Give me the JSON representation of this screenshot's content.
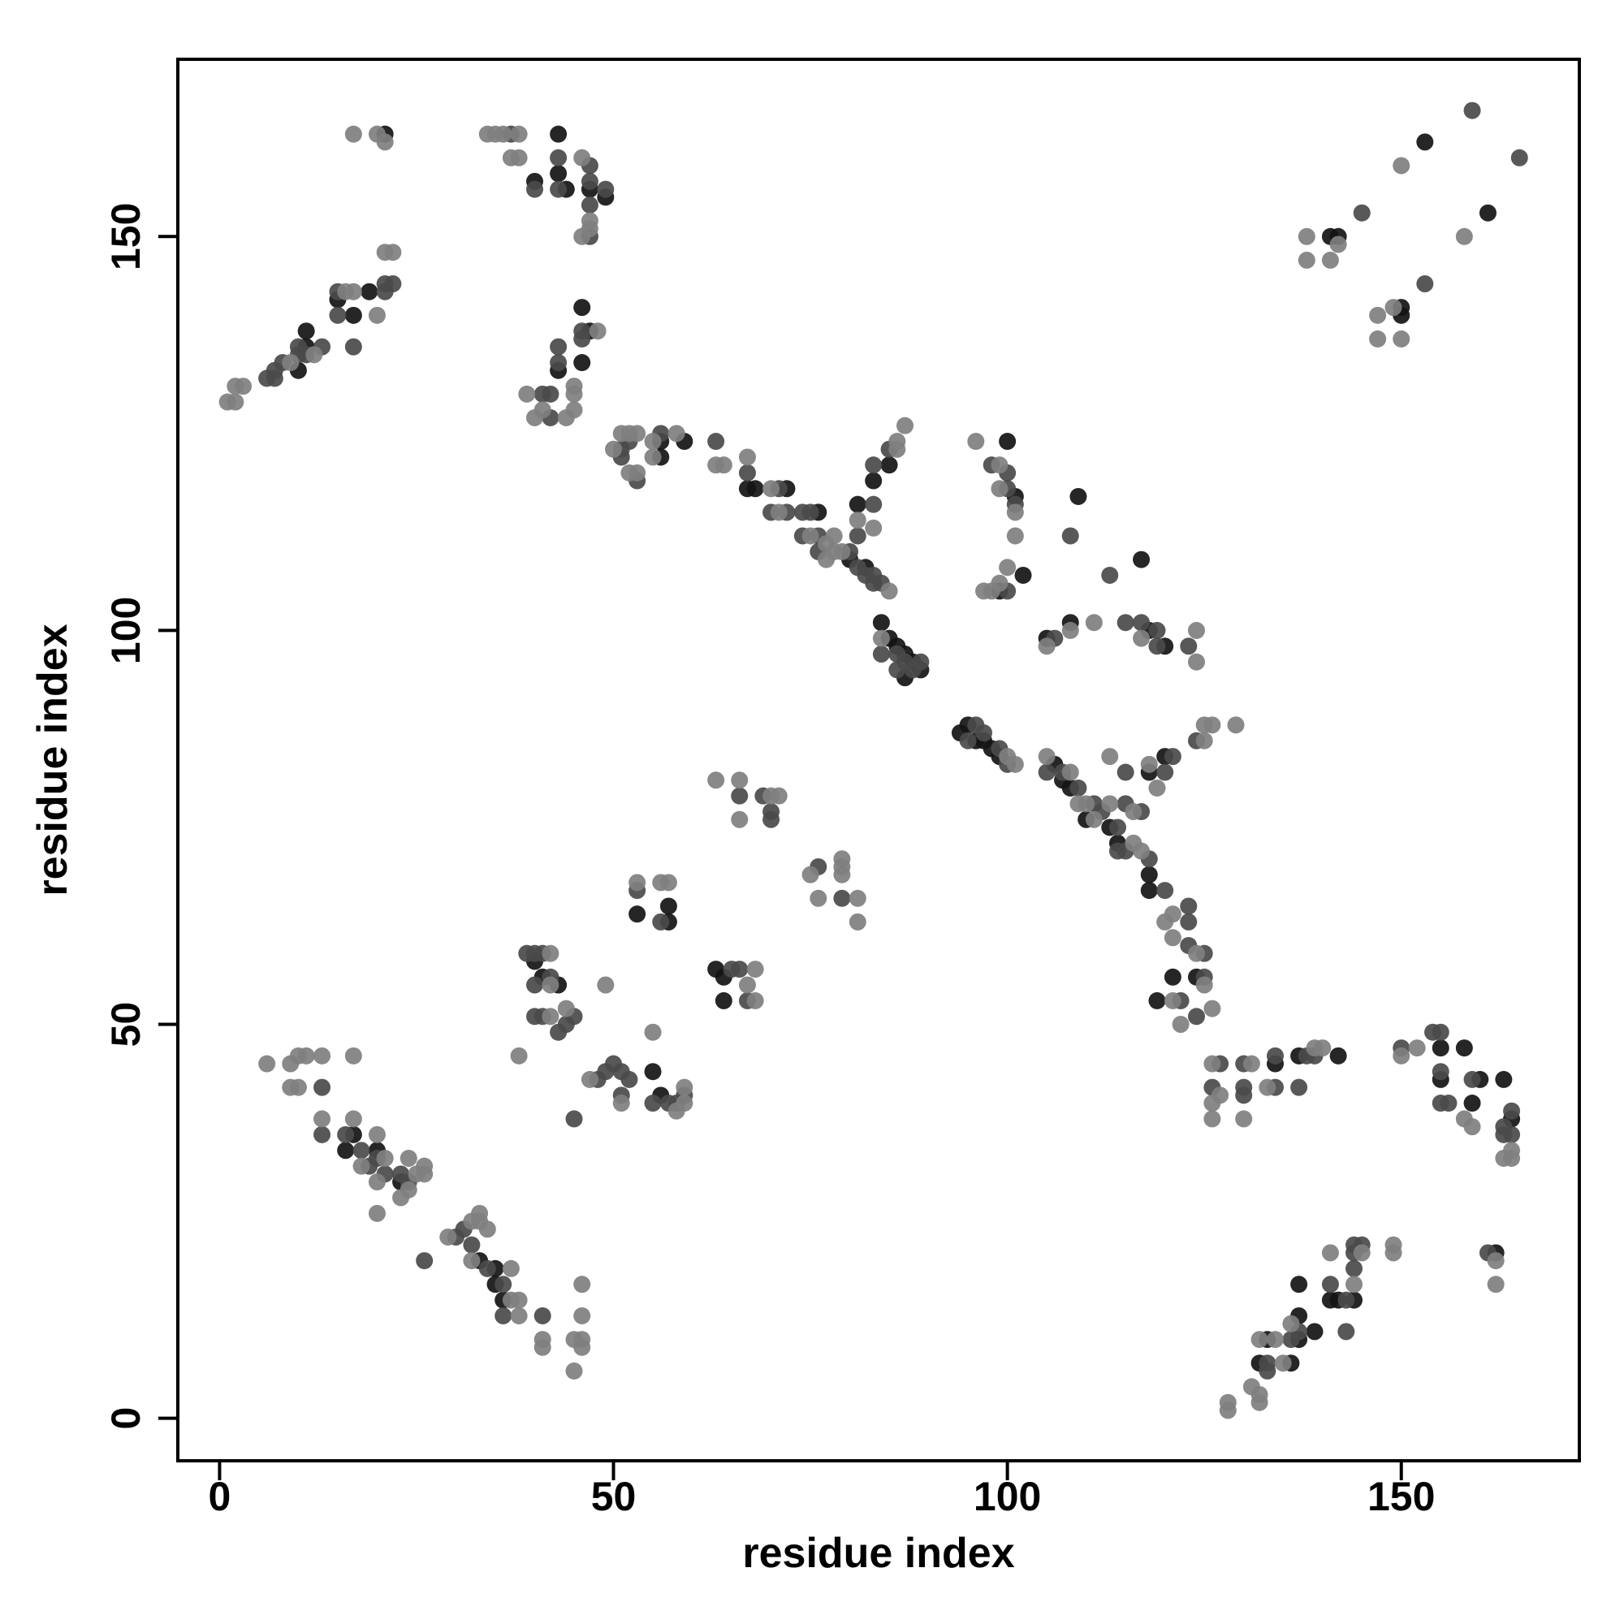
{
  "chart_data": {
    "type": "scatter",
    "xlabel": "residue index",
    "ylabel": "residue index",
    "xlim": [
      -5.3,
      172.6
    ],
    "ylim": [
      -5.4,
      172.5
    ],
    "xticks": [
      0,
      50,
      100,
      150
    ],
    "yticks": [
      0,
      50,
      100,
      150
    ],
    "grid": false,
    "series": [
      {
        "color": "#141414",
        "x": [
          10,
          11,
          11,
          15,
          17,
          19,
          21,
          40,
          43,
          43,
          44,
          47,
          49,
          46,
          47,
          46,
          43,
          56,
          56,
          59,
          67,
          68,
          72,
          76,
          81,
          83,
          85,
          80,
          82,
          84,
          85,
          86,
          87,
          88,
          89,
          87,
          94,
          95,
          96,
          97,
          98,
          99,
          100,
          101,
          102,
          99,
          109,
          117,
          108,
          120,
          118,
          105,
          106,
          107,
          108,
          110,
          113,
          114,
          118,
          118,
          121,
          124,
          119,
          118,
          120,
          43,
          41,
          40,
          16,
          17,
          20,
          23,
          33,
          35,
          35,
          36,
          55,
          56,
          57,
          53,
          57,
          64,
          63,
          64,
          134,
          137,
          142,
          155,
          155,
          160,
          158,
          159,
          163,
          164,
          162,
          133,
          137,
          137,
          136,
          137,
          141,
          142,
          144,
          139,
          132,
          141,
          142,
          150,
          150,
          153,
          161
        ],
        "values": [
          133,
          136,
          138,
          142,
          140,
          143,
          163,
          157,
          163,
          158,
          156,
          156,
          155,
          141,
          138,
          134,
          133,
          124,
          122,
          124,
          118,
          118,
          118,
          115,
          116,
          119,
          121,
          109,
          108,
          101,
          99,
          98,
          97,
          96,
          95,
          94,
          87,
          88,
          86,
          86,
          85,
          84,
          124,
          117,
          107,
          105,
          117,
          109,
          101,
          98,
          100,
          99,
          83,
          81,
          80,
          76,
          75,
          73,
          69,
          67,
          56,
          56,
          53,
          82,
          84,
          55,
          56,
          58,
          34,
          36,
          34,
          30,
          20,
          19,
          17,
          15,
          44,
          41,
          63,
          64,
          65,
          56,
          57,
          53,
          45,
          46,
          46,
          47,
          43,
          43,
          47,
          40,
          43,
          38,
          21,
          10,
          13,
          17,
          7,
          10,
          15,
          15,
          15,
          11,
          7,
          150,
          150,
          141,
          140,
          162,
          153
        ]
      },
      {
        "color": "#4a4a4a",
        "x": [
          6,
          7,
          7,
          8,
          10,
          10,
          11,
          13,
          15,
          15,
          17,
          21,
          21,
          22,
          37,
          40,
          43,
          43,
          47,
          47,
          47,
          49,
          47,
          41,
          42,
          42,
          43,
          43,
          46,
          46,
          52,
          56,
          51,
          51,
          53,
          63,
          67,
          71,
          70,
          72,
          74,
          75,
          74,
          76,
          76,
          80,
          81,
          82,
          83,
          83,
          84,
          81,
          83,
          83,
          85,
          86,
          87,
          88,
          89,
          86,
          84,
          95,
          96,
          97,
          99,
          100,
          105,
          107,
          109,
          111,
          112,
          114,
          114,
          115,
          118,
          120,
          123,
          125,
          125,
          124,
          122,
          123,
          123,
          115,
          115,
          117,
          120,
          121,
          124,
          98,
          100,
          100,
          101,
          100,
          108,
          113,
          115,
          117,
          119,
          119,
          123,
          106,
          13,
          13,
          16,
          18,
          19,
          20,
          21,
          23,
          24,
          26,
          30,
          31,
          32,
          34,
          36,
          36,
          41,
          39,
          40,
          41,
          40,
          42,
          40,
          41,
          43,
          44,
          45,
          45,
          48,
          49,
          50,
          51,
          51,
          52,
          55,
          57,
          58,
          59,
          53,
          56,
          65,
          66,
          67,
          66,
          69,
          70,
          70,
          76,
          79,
          127,
          126,
          130,
          130,
          130,
          134,
          134,
          137,
          138,
          139,
          150,
          154,
          155,
          155,
          155,
          156,
          159,
          164,
          164,
          163,
          163,
          161,
          133,
          133,
          136,
          137,
          141,
          143,
          143,
          144,
          144,
          145,
          144,
          145,
          153,
          159,
          165
        ],
        "values": [
          132,
          132,
          133,
          134,
          135,
          136,
          135,
          136,
          140,
          143,
          136,
          143,
          144,
          144,
          163,
          156,
          160,
          156,
          159,
          157,
          154,
          156,
          150,
          130,
          130,
          127,
          134,
          136,
          137,
          138,
          124,
          125,
          123,
          122,
          119,
          124,
          120,
          118,
          115,
          115,
          115,
          115,
          112,
          112,
          110,
          110,
          108,
          107,
          107,
          106,
          106,
          112,
          116,
          121,
          123,
          97,
          96,
          95,
          96,
          95,
          97,
          86,
          88,
          87,
          85,
          83,
          82,
          82,
          80,
          78,
          77,
          75,
          72,
          72,
          71,
          67,
          60,
          59,
          56,
          51,
          53,
          65,
          63,
          82,
          78,
          77,
          82,
          84,
          86,
          121,
          120,
          118,
          116,
          105,
          112,
          107,
          101,
          101,
          100,
          98,
          98,
          99,
          42,
          36,
          36,
          34,
          32,
          33,
          31,
          31,
          30,
          20,
          23,
          24,
          22,
          19,
          17,
          13,
          13,
          59,
          59,
          59,
          55,
          56,
          51,
          51,
          49,
          50,
          51,
          38,
          43,
          44,
          45,
          44,
          41,
          43,
          40,
          40,
          40,
          41,
          67,
          63,
          57,
          57,
          53,
          79,
          79,
          77,
          76,
          70,
          66,
          45,
          42,
          45,
          42,
          41,
          42,
          46,
          42,
          46,
          46,
          47,
          49,
          49,
          44,
          40,
          40,
          43,
          39,
          36,
          36,
          37,
          21,
          7,
          6,
          10,
          11,
          17,
          11,
          15,
          19,
          21,
          22,
          22,
          153,
          144,
          166,
          160
        ]
      },
      {
        "color": "#7f7f7f",
        "x": [
          1,
          2,
          2,
          3,
          9,
          12,
          16,
          17,
          20,
          22,
          21,
          17,
          21,
          20,
          34,
          35,
          36,
          38,
          37,
          38,
          46,
          46,
          47,
          47,
          39,
          40,
          41,
          44,
          45,
          45,
          45,
          48,
          51,
          52,
          53,
          55,
          50,
          52,
          53,
          55,
          58,
          63,
          64,
          67,
          70,
          71,
          75,
          77,
          77,
          78,
          78,
          79,
          85,
          81,
          83,
          86,
          86,
          87,
          84,
          100,
          101,
          105,
          108,
          109,
          110,
          111,
          116,
          117,
          120,
          121,
          121,
          124,
          125,
          126,
          122,
          121,
          113,
          113,
          116,
          118,
          119,
          125,
          125,
          129,
          126,
          96,
          99,
          99,
          101,
          101,
          100,
          99,
          97,
          98,
          105,
          108,
          111,
          117,
          124,
          124,
          6,
          9,
          10,
          11,
          9,
          10,
          13,
          17,
          13,
          17,
          18,
          20,
          20,
          21,
          23,
          24,
          24,
          25,
          26,
          26,
          20,
          29,
          32,
          33,
          33,
          34,
          32,
          37,
          37,
          38,
          38,
          41,
          41,
          45,
          45,
          46,
          46,
          46,
          46,
          38,
          42,
          42,
          42,
          44,
          49,
          47,
          51,
          55,
          58,
          59,
          59,
          53,
          56,
          57,
          67,
          68,
          68,
          63,
          66,
          66,
          70,
          71,
          75,
          76,
          79,
          79,
          79,
          81,
          81,
          126,
          126,
          127,
          126,
          131,
          130,
          133,
          139,
          140,
          150,
          152,
          158,
          159,
          164,
          164,
          163,
          162,
          162,
          128,
          128,
          132,
          132,
          131,
          132,
          134,
          135,
          136,
          141,
          144,
          145,
          149,
          149,
          138,
          138,
          141,
          142,
          147,
          147,
          149,
          150,
          150,
          158
        ],
        "values": [
          129,
          129,
          131,
          131,
          134,
          135,
          143,
          143,
          140,
          148,
          148,
          163,
          162,
          163,
          163,
          163,
          163,
          163,
          160,
          160,
          160,
          150,
          151,
          152,
          130,
          127,
          128,
          127,
          128,
          130,
          131,
          138,
          125,
          125,
          125,
          124,
          123,
          120,
          120,
          122,
          125,
          121,
          121,
          122,
          118,
          115,
          112,
          111,
          109,
          110,
          112,
          110,
          105,
          114,
          113,
          123,
          124,
          126,
          99,
          84,
          83,
          84,
          82,
          78,
          78,
          76,
          73,
          72,
          63,
          64,
          61,
          59,
          55,
          52,
          50,
          53,
          84,
          78,
          77,
          83,
          80,
          86,
          88,
          88,
          88,
          124,
          121,
          118,
          115,
          112,
          108,
          106,
          105,
          105,
          98,
          100,
          101,
          99,
          100,
          96,
          45,
          45,
          46,
          46,
          42,
          42,
          46,
          46,
          38,
          38,
          32,
          36,
          30,
          33,
          28,
          29,
          33,
          31,
          31,
          32,
          26,
          23,
          25,
          25,
          26,
          24,
          20,
          19,
          15,
          15,
          13,
          10,
          9,
          10,
          6,
          10,
          9,
          13,
          17,
          46,
          59,
          55,
          51,
          52,
          55,
          43,
          40,
          49,
          39,
          40,
          42,
          68,
          68,
          68,
          55,
          57,
          53,
          81,
          81,
          76,
          79,
          79,
          69,
          66,
          70,
          71,
          69,
          66,
          63,
          45,
          40,
          41,
          38,
          45,
          38,
          42,
          47,
          47,
          46,
          47,
          38,
          37,
          34,
          33,
          33,
          20,
          17,
          2,
          1,
          3,
          2,
          4,
          10,
          10,
          7,
          12,
          21,
          17,
          21,
          21,
          22,
          150,
          147,
          147,
          149,
          140,
          137,
          141,
          137,
          159,
          150
        ]
      }
    ]
  }
}
